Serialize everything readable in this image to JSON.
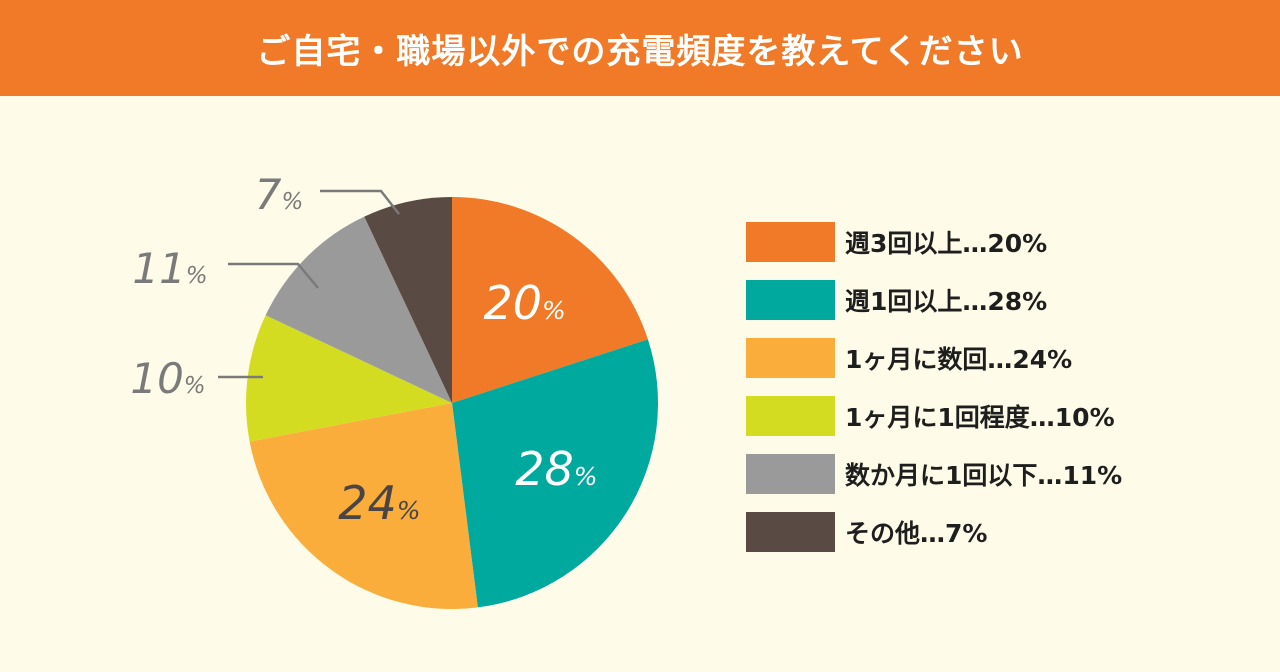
{
  "header": {
    "title": "ご自宅・職場以外での充電頻度を教えてください"
  },
  "colors": {
    "header_bg": "#f07a27",
    "background": "#fefce8",
    "label_outer": "#7a7a7a",
    "label_inner_light": "#ffffff",
    "label_inner_dark": "#4a4544"
  },
  "chart_data": {
    "type": "pie",
    "title": "ご自宅・職場以外での充電頻度を教えてください",
    "categories": [
      "週3回以上",
      "週1回以上",
      "1ヶ月に数回",
      "1ヶ月に1回程度",
      "数か月に1回以下",
      "その他"
    ],
    "values": [
      20,
      28,
      24,
      10,
      11,
      7
    ],
    "unit": "%",
    "colors": [
      "#f07a27",
      "#00a99d",
      "#fbad3c",
      "#d4dc21",
      "#9a9a9a",
      "#594a44"
    ],
    "slice_labels": [
      {
        "number": "20",
        "suffix": "%",
        "position": "inside",
        "color": "#ffffff"
      },
      {
        "number": "28",
        "suffix": "%",
        "position": "inside",
        "color": "#ffffff"
      },
      {
        "number": "24",
        "suffix": "%",
        "position": "inside",
        "color": "#4a4544"
      },
      {
        "number": "10",
        "suffix": "%",
        "position": "outside",
        "color": "#7a7a7a"
      },
      {
        "number": "11",
        "suffix": "%",
        "position": "outside",
        "color": "#7a7a7a"
      },
      {
        "number": "7",
        "suffix": "%",
        "position": "outside",
        "color": "#7a7a7a"
      }
    ],
    "start": "top",
    "direction": "clockwise",
    "legend": {
      "placement": "right",
      "items": [
        "週3回以上…20%",
        "週1回以上…28%",
        "1ヶ月に数回…24%",
        "1ヶ月に1回程度…10%",
        "数か月に1回以下…11%",
        "その他…7%"
      ]
    }
  }
}
